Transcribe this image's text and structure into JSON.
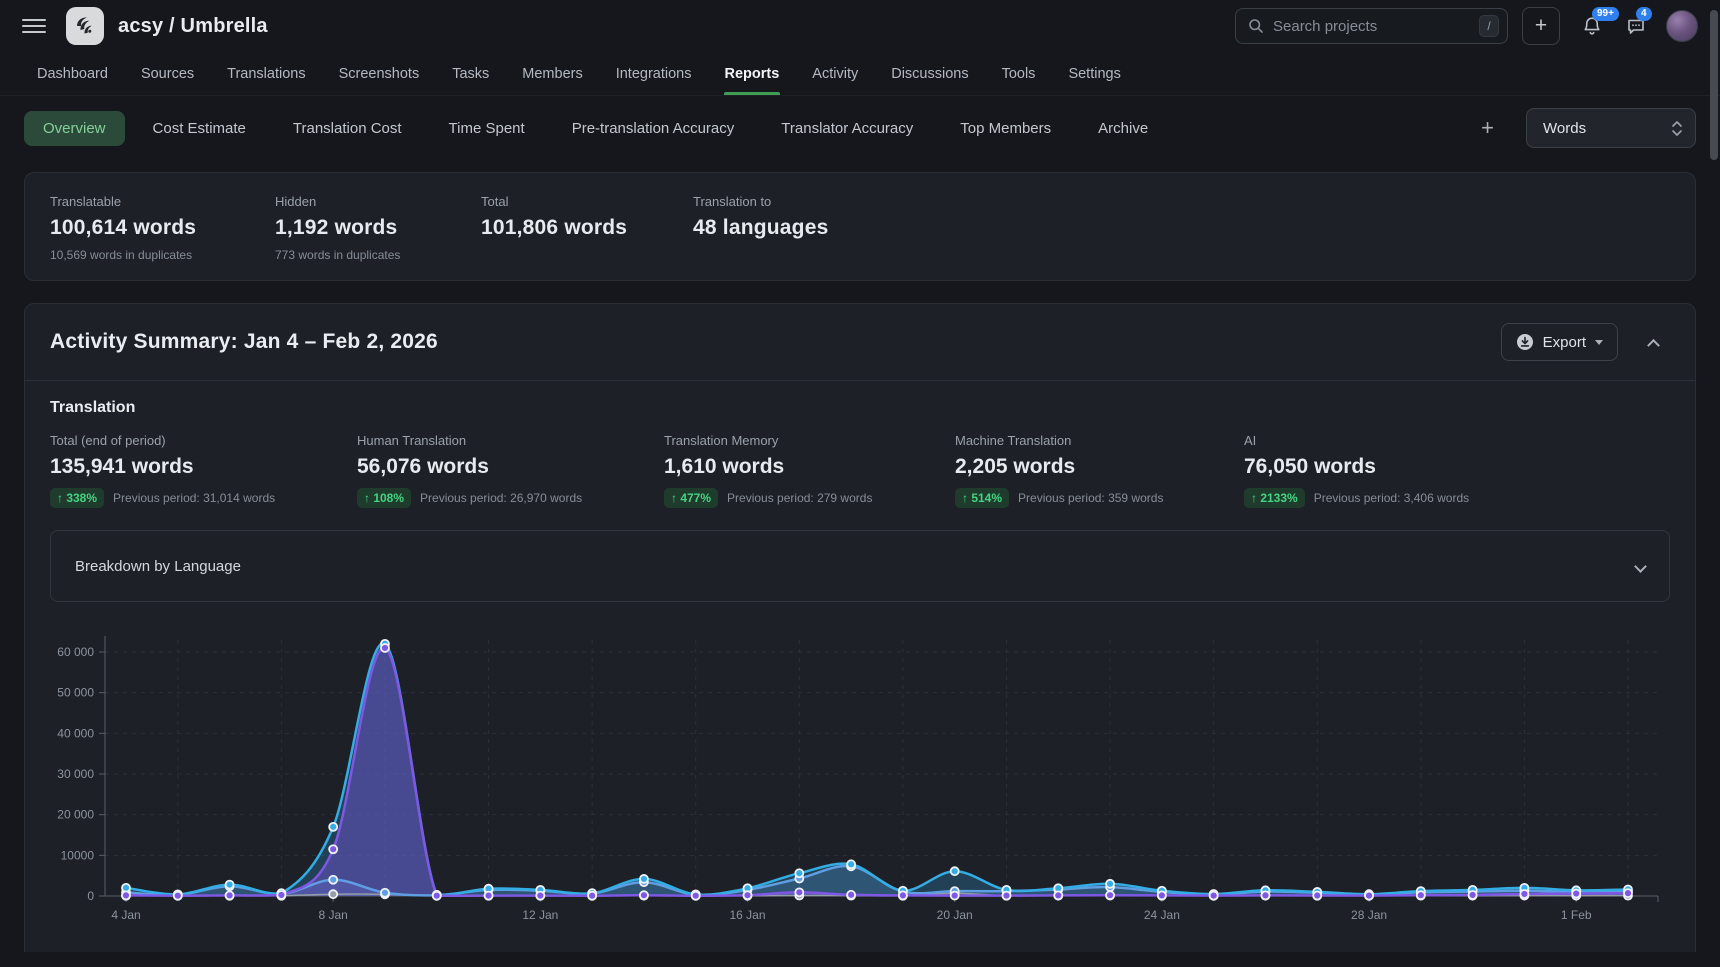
{
  "header": {
    "title": "acsy / Umbrella",
    "search": {
      "placeholder": "Search projects",
      "shortcut": "/"
    },
    "create_label": "+",
    "notifications_badge": "99+",
    "messages_badge": "4"
  },
  "nav": {
    "items": [
      {
        "label": "Dashboard",
        "active": false
      },
      {
        "label": "Sources",
        "active": false
      },
      {
        "label": "Translations",
        "active": false
      },
      {
        "label": "Screenshots",
        "active": false
      },
      {
        "label": "Tasks",
        "active": false
      },
      {
        "label": "Members",
        "active": false
      },
      {
        "label": "Integrations",
        "active": false
      },
      {
        "label": "Reports",
        "active": true
      },
      {
        "label": "Activity",
        "active": false
      },
      {
        "label": "Discussions",
        "active": false
      },
      {
        "label": "Tools",
        "active": false
      },
      {
        "label": "Settings",
        "active": false
      }
    ]
  },
  "report_tabs": {
    "items": [
      {
        "label": "Overview",
        "active": true
      },
      {
        "label": "Cost Estimate",
        "active": false
      },
      {
        "label": "Translation Cost",
        "active": false
      },
      {
        "label": "Time Spent",
        "active": false
      },
      {
        "label": "Pre-translation Accuracy",
        "active": false
      },
      {
        "label": "Translator Accuracy",
        "active": false
      },
      {
        "label": "Top Members",
        "active": false
      },
      {
        "label": "Archive",
        "active": false
      }
    ],
    "add_label": "+",
    "unit_select": "Words"
  },
  "overview_stats": [
    {
      "label": "Translatable",
      "value": "100,614 words",
      "note": "10,569 words in duplicates"
    },
    {
      "label": "Hidden",
      "value": "1,192 words",
      "note": "773 words in duplicates"
    },
    {
      "label": "Total",
      "value": "101,806 words",
      "note": ""
    },
    {
      "label": "Translation to",
      "value": "48 languages",
      "note": ""
    }
  ],
  "summary": {
    "title": "Activity Summary: Jan 4 – Feb 2, 2026",
    "export_label": "Export",
    "section_title": "Translation",
    "stats": [
      {
        "label": "Total (end of period)",
        "value": "135,941 words",
        "change": "338%",
        "previous": "Previous period: 31,014 words"
      },
      {
        "label": "Human Translation",
        "value": "56,076 words",
        "change": "108%",
        "previous": "Previous period: 26,970 words"
      },
      {
        "label": "Translation Memory",
        "value": "1,610 words",
        "change": "477%",
        "previous": "Previous period: 279 words"
      },
      {
        "label": "Machine Translation",
        "value": "2,205 words",
        "change": "514%",
        "previous": "Previous period: 359 words"
      },
      {
        "label": "AI",
        "value": "76,050 words",
        "change": "2133%",
        "previous": "Previous period: 3,406 words"
      }
    ],
    "breakdown_label": "Breakdown by Language"
  },
  "chart_data": {
    "type": "area",
    "title": "Activity Summary daily words",
    "xlabel": "",
    "ylabel": "",
    "ylim": [
      0,
      65000
    ],
    "grid": true,
    "legend_position": "none",
    "y_ticks": [
      0,
      10000,
      20000,
      30000,
      40000,
      50000,
      60000
    ],
    "y_tick_labels": [
      "0",
      "10000",
      "20 000",
      "30 000",
      "40 000",
      "50 000",
      "60 000"
    ],
    "x": [
      "4 Jan",
      "5 Jan",
      "6 Jan",
      "7 Jan",
      "8 Jan",
      "9 Jan",
      "10 Jan",
      "11 Jan",
      "12 Jan",
      "13 Jan",
      "14 Jan",
      "15 Jan",
      "16 Jan",
      "17 Jan",
      "18 Jan",
      "19 Jan",
      "20 Jan",
      "21 Jan",
      "22 Jan",
      "23 Jan",
      "24 Jan",
      "25 Jan",
      "26 Jan",
      "27 Jan",
      "28 Jan",
      "29 Jan",
      "30 Jan",
      "31 Jan",
      "1 Feb",
      "2 Feb"
    ],
    "x_tick_every": 4,
    "series": [
      {
        "name": "Total",
        "color": "#33ade4",
        "fill": "rgba(47,138,196,0.30)",
        "values": [
          2000,
          400,
          2800,
          700,
          17000,
          62000,
          300,
          1800,
          1500,
          700,
          4200,
          400,
          1900,
          5600,
          7800,
          1300,
          6100,
          1500,
          1900,
          3000,
          1300,
          500,
          1400,
          1000,
          450,
          1200,
          1500,
          2000,
          1400,
          1600
        ]
      },
      {
        "name": "Human Translation",
        "color": "#5f9ee2",
        "fill": "rgba(95,158,226,0.22)",
        "values": [
          900,
          300,
          2400,
          500,
          4000,
          800,
          200,
          1500,
          1300,
          600,
          3400,
          300,
          1500,
          4300,
          7300,
          1100,
          1200,
          1200,
          1600,
          2200,
          1000,
          350,
          1100,
          800,
          350,
          900,
          1100,
          1300,
          1000,
          1100
        ]
      },
      {
        "name": "AI",
        "color": "#7e57e2",
        "fill": "rgba(126,87,226,0.42)",
        "values": [
          150,
          80,
          150,
          250,
          11500,
          61000,
          80,
          100,
          100,
          80,
          200,
          80,
          200,
          900,
          300,
          150,
          100,
          100,
          150,
          200,
          150,
          100,
          150,
          120,
          100,
          200,
          250,
          500,
          600,
          700
        ]
      },
      {
        "name": "Translation Memory",
        "color": "#949ca6",
        "fill": "none",
        "values": [
          60,
          40,
          60,
          60,
          450,
          420,
          50,
          60,
          60,
          40,
          80,
          40,
          60,
          120,
          90,
          60,
          700,
          60,
          80,
          100,
          60,
          40,
          70,
          60,
          40,
          70,
          80,
          100,
          80,
          90
        ]
      }
    ]
  }
}
